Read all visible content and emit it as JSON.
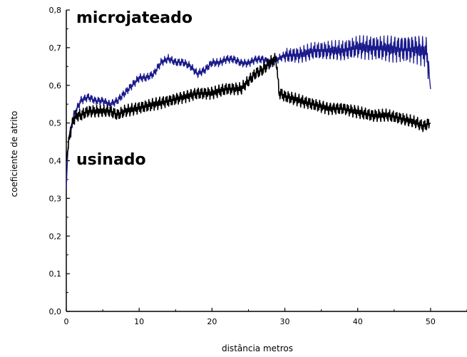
{
  "chart_data": {
    "type": "line",
    "title": "",
    "xlabel": "distância metros",
    "ylabel": "coeficiente de atrito",
    "xlim": [
      0,
      55
    ],
    "ylim": [
      0.0,
      0.8
    ],
    "xticks": [
      0,
      10,
      20,
      30,
      40,
      50
    ],
    "xtick_labels": [
      "0",
      "10",
      "20",
      "30",
      "40",
      "50"
    ],
    "yticks": [
      0.0,
      0.1,
      0.2,
      0.3,
      0.4,
      0.5,
      0.6,
      0.7,
      0.8
    ],
    "ytick_labels": [
      "0,0",
      "0,1",
      "0,2",
      "0,3",
      "0,4",
      "0,5",
      "0,6",
      "0,7",
      "0,8"
    ],
    "grid": false,
    "series": [
      {
        "name": "microjateado",
        "color": "#1a1a8c",
        "x": [
          0,
          0.3,
          0.7,
          1.0,
          1.5,
          2,
          3,
          4,
          5,
          6,
          7,
          8,
          9,
          10,
          11,
          12,
          13,
          14,
          15,
          16,
          17,
          18,
          19,
          20,
          21,
          22,
          23,
          24,
          25,
          26,
          27,
          28,
          29,
          30,
          32,
          34,
          36,
          38,
          40,
          42,
          44,
          46,
          48,
          49.5,
          50
        ],
        "y": [
          0.33,
          0.46,
          0.49,
          0.52,
          0.54,
          0.56,
          0.57,
          0.56,
          0.56,
          0.55,
          0.56,
          0.58,
          0.6,
          0.62,
          0.62,
          0.63,
          0.66,
          0.67,
          0.66,
          0.66,
          0.65,
          0.63,
          0.64,
          0.66,
          0.66,
          0.67,
          0.67,
          0.66,
          0.66,
          0.67,
          0.67,
          0.66,
          0.67,
          0.68,
          0.68,
          0.69,
          0.69,
          0.69,
          0.7,
          0.7,
          0.7,
          0.7,
          0.7,
          0.69,
          0.59
        ],
        "noise": 0.035
      },
      {
        "name": "usinado",
        "color": "#000000",
        "x": [
          0,
          0.5,
          1.0,
          1.5,
          2,
          3,
          4,
          5,
          6,
          7,
          8,
          10,
          12,
          14,
          16,
          18,
          20,
          22,
          24,
          25,
          26,
          27,
          28,
          28.8,
          29.2,
          30,
          32,
          34,
          36,
          38,
          40,
          42,
          44,
          46,
          48,
          49,
          50
        ],
        "y": [
          0.4,
          0.47,
          0.51,
          0.52,
          0.52,
          0.53,
          0.53,
          0.53,
          0.53,
          0.52,
          0.53,
          0.54,
          0.55,
          0.56,
          0.57,
          0.58,
          0.58,
          0.59,
          0.59,
          0.61,
          0.63,
          0.64,
          0.66,
          0.67,
          0.58,
          0.57,
          0.56,
          0.55,
          0.54,
          0.54,
          0.53,
          0.52,
          0.52,
          0.51,
          0.5,
          0.49,
          0.5
        ],
        "noise": 0.018
      }
    ]
  }
}
